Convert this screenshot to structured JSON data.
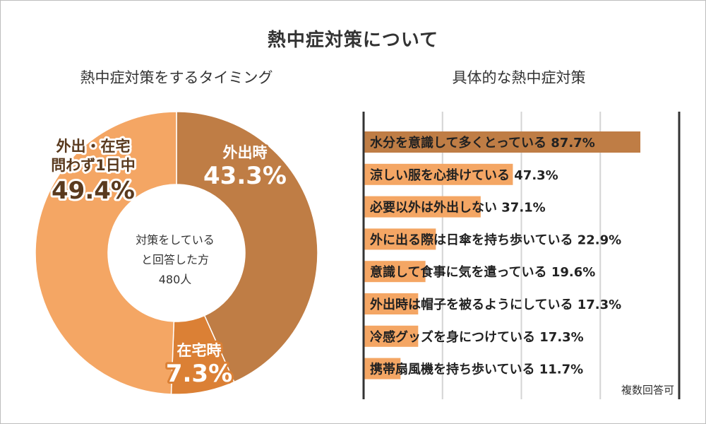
{
  "title": "熱中症対策について",
  "note": "複数回答可",
  "colors": {
    "dark": "#bf7d45",
    "medium": "#db8035",
    "light": "#f4a664",
    "axis": "#333333",
    "grid": "#d4d4d4"
  },
  "chart_data": [
    {
      "type": "pie",
      "donut": true,
      "title": "熱中症対策をするタイミング",
      "center_label": [
        "対策をしている",
        "と回答した方",
        "480人"
      ],
      "slices": [
        {
          "label": "外出時",
          "value": 43.3,
          "value_label": "43.3%",
          "color": "#bf7d45"
        },
        {
          "label": "在宅時",
          "value": 7.3,
          "value_label": "7.3%",
          "color": "#db8035"
        },
        {
          "label": "外出・在宅\n問わず1日中",
          "value": 49.4,
          "value_label": "49.4%",
          "color": "#f4a664"
        }
      ]
    },
    {
      "type": "bar",
      "orientation": "horizontal",
      "title": "具体的な熱中症対策",
      "xlim": [
        0,
        100
      ],
      "grid": true,
      "categories": [
        "水分を意識して多くとっている",
        "涼しい服を心掛けている",
        "必要以外は外出しない",
        "外に出る際は日傘を持ち歩いている",
        "意識して食事に気を遣っている",
        "外出時は帽子を被るようにしている",
        "冷感グッズを身につけている",
        "携帯扇風機を持ち歩いている"
      ],
      "values": [
        87.7,
        47.3,
        37.1,
        22.9,
        19.6,
        17.3,
        17.3,
        11.7
      ],
      "value_labels": [
        "87.7%",
        "47.3%",
        "37.1%",
        "22.9%",
        "19.6%",
        "17.3%",
        "17.3%",
        "11.7%"
      ]
    }
  ]
}
